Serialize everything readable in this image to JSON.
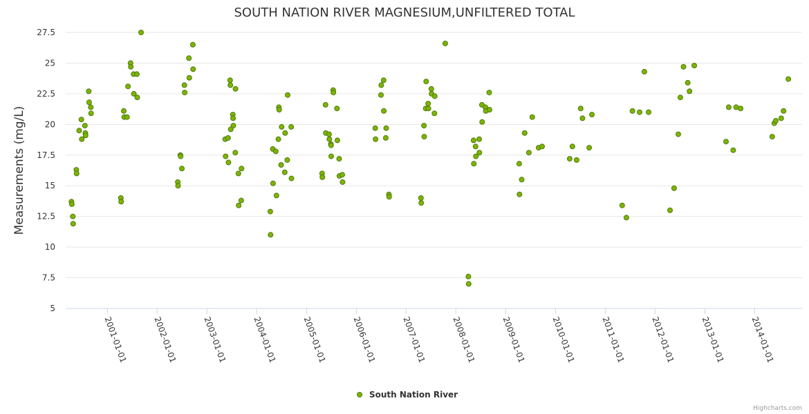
{
  "credits": "Highcharts.com",
  "chart_data": {
    "type": "scatter",
    "title": "SOUTH NATION RIVER MAGNESIUM,UNFILTERED TOTAL",
    "xlabel": "",
    "ylabel": "Measurements (mg/L)",
    "ylim": [
      5,
      27.5
    ],
    "yticks": [
      "5",
      "7.5",
      "10",
      "12.5",
      "15",
      "17.5",
      "20",
      "22.5",
      "25",
      "27.5"
    ],
    "xlim": [
      "2000-03-01",
      "2014-12-15"
    ],
    "xticks": [
      {
        "date": "2001-01-01",
        "label": "2001-01-01"
      },
      {
        "date": "2002-01-01",
        "label": "2002-01-01"
      },
      {
        "date": "2003-01-01",
        "label": "2003-01-01"
      },
      {
        "date": "2004-01-01",
        "label": "2004-01-01"
      },
      {
        "date": "2005-01-01",
        "label": "2005-01-01"
      },
      {
        "date": "2006-01-01",
        "label": "2006-01-01"
      },
      {
        "date": "2007-01-01",
        "label": "2007-01-01"
      },
      {
        "date": "2008-01-01",
        "label": "2008-01-01"
      },
      {
        "date": "2009-01-01",
        "label": "2009-01-01"
      },
      {
        "date": "2010-01-01",
        "label": "2010-01-01"
      },
      {
        "date": "2011-01-01",
        "label": "2011-01-01"
      },
      {
        "date": "2012-01-01",
        "label": "2012-01-01"
      },
      {
        "date": "2013-01-01",
        "label": "2013-01-01"
      },
      {
        "date": "2014-01-01",
        "label": "2014-01-01"
      }
    ],
    "grid": true,
    "legend_position": "bottom-center",
    "series": [
      {
        "name": "South Nation River",
        "color": "#6aa121",
        "marker_fill": "#7db500",
        "marker_stroke": "#4f7a10",
        "points": [
          [
            "2000-04-12",
            13.7
          ],
          [
            "2000-04-15",
            13.5
          ],
          [
            "2000-04-22",
            12.5
          ],
          [
            "2000-04-25",
            11.9
          ],
          [
            "2000-05-18",
            16.3
          ],
          [
            "2000-05-20",
            16.0
          ],
          [
            "2000-06-08",
            19.5
          ],
          [
            "2000-06-24",
            20.4
          ],
          [
            "2000-06-27",
            18.8
          ],
          [
            "2000-07-20",
            19.9
          ],
          [
            "2000-07-23",
            19.3
          ],
          [
            "2000-07-25",
            19.1
          ],
          [
            "2000-08-17",
            22.7
          ],
          [
            "2000-08-20",
            21.8
          ],
          [
            "2000-09-01",
            21.4
          ],
          [
            "2000-09-03",
            20.9
          ],
          [
            "2001-04-10",
            14.0
          ],
          [
            "2001-04-12",
            13.7
          ],
          [
            "2001-05-01",
            21.1
          ],
          [
            "2001-05-04",
            20.6
          ],
          [
            "2001-05-25",
            20.6
          ],
          [
            "2001-06-01",
            23.1
          ],
          [
            "2001-06-20",
            25.0
          ],
          [
            "2001-06-22",
            24.7
          ],
          [
            "2001-07-12",
            24.1
          ],
          [
            "2001-07-14",
            22.5
          ],
          [
            "2001-08-05",
            24.1
          ],
          [
            "2001-08-08",
            22.2
          ],
          [
            "2001-09-05",
            27.5
          ],
          [
            "2002-06-01",
            15.3
          ],
          [
            "2002-06-03",
            15.0
          ],
          [
            "2002-06-20",
            17.5
          ],
          [
            "2002-06-22",
            17.4
          ],
          [
            "2002-07-01",
            16.4
          ],
          [
            "2002-07-20",
            23.2
          ],
          [
            "2002-07-22",
            22.6
          ],
          [
            "2002-08-22",
            25.4
          ],
          [
            "2002-08-25",
            23.8
          ],
          [
            "2002-09-20",
            26.5
          ],
          [
            "2002-09-22",
            24.5
          ],
          [
            "2003-05-15",
            18.8
          ],
          [
            "2003-05-18",
            17.4
          ],
          [
            "2003-06-05",
            18.9
          ],
          [
            "2003-06-08",
            16.9
          ],
          [
            "2003-06-20",
            23.6
          ],
          [
            "2003-06-22",
            23.2
          ],
          [
            "2003-06-25",
            19.6
          ],
          [
            "2003-07-10",
            20.8
          ],
          [
            "2003-07-12",
            20.5
          ],
          [
            "2003-07-14",
            19.9
          ],
          [
            "2003-07-28",
            17.7
          ],
          [
            "2003-07-30",
            22.9
          ],
          [
            "2003-08-20",
            16.0
          ],
          [
            "2003-08-22",
            13.4
          ],
          [
            "2003-09-10",
            13.8
          ],
          [
            "2003-09-12",
            16.4
          ],
          [
            "2004-04-10",
            12.9
          ],
          [
            "2004-04-12",
            11.0
          ],
          [
            "2004-04-28",
            18.0
          ],
          [
            "2004-04-30",
            15.2
          ],
          [
            "2004-05-20",
            17.8
          ],
          [
            "2004-05-25",
            14.2
          ],
          [
            "2004-06-08",
            18.8
          ],
          [
            "2004-06-12",
            21.4
          ],
          [
            "2004-06-14",
            21.2
          ],
          [
            "2004-06-28",
            16.7
          ],
          [
            "2004-07-02",
            19.8
          ],
          [
            "2004-07-25",
            16.1
          ],
          [
            "2004-07-28",
            19.3
          ],
          [
            "2004-08-12",
            17.1
          ],
          [
            "2004-08-15",
            22.4
          ],
          [
            "2004-09-10",
            19.8
          ],
          [
            "2004-09-12",
            15.6
          ],
          [
            "2005-04-25",
            16.0
          ],
          [
            "2005-04-27",
            15.7
          ],
          [
            "2005-05-20",
            21.6
          ],
          [
            "2005-05-22",
            19.3
          ],
          [
            "2005-06-15",
            19.2
          ],
          [
            "2005-06-17",
            18.8
          ],
          [
            "2005-06-28",
            18.4
          ],
          [
            "2005-06-30",
            18.3
          ],
          [
            "2005-07-01",
            17.4
          ],
          [
            "2005-07-15",
            22.8
          ],
          [
            "2005-07-17",
            22.6
          ],
          [
            "2005-08-12",
            21.3
          ],
          [
            "2005-08-15",
            18.7
          ],
          [
            "2005-08-28",
            17.2
          ],
          [
            "2005-08-30",
            15.8
          ],
          [
            "2005-09-20",
            15.9
          ],
          [
            "2005-09-22",
            15.3
          ],
          [
            "2006-05-20",
            19.7
          ],
          [
            "2006-05-22",
            18.8
          ],
          [
            "2006-07-01",
            22.4
          ],
          [
            "2006-07-03",
            23.2
          ],
          [
            "2006-07-20",
            23.6
          ],
          [
            "2006-07-22",
            21.1
          ],
          [
            "2006-08-05",
            18.9
          ],
          [
            "2006-08-08",
            19.7
          ],
          [
            "2006-08-28",
            14.3
          ],
          [
            "2006-08-30",
            14.1
          ],
          [
            "2007-04-20",
            14.0
          ],
          [
            "2007-04-22",
            13.6
          ],
          [
            "2007-05-12",
            19.9
          ],
          [
            "2007-05-14",
            19.0
          ],
          [
            "2007-05-25",
            21.3
          ],
          [
            "2007-05-28",
            23.5
          ],
          [
            "2007-06-12",
            21.7
          ],
          [
            "2007-06-14",
            21.3
          ],
          [
            "2007-07-05",
            22.9
          ],
          [
            "2007-07-07",
            22.5
          ],
          [
            "2007-07-28",
            20.9
          ],
          [
            "2007-07-30",
            22.3
          ],
          [
            "2007-10-15",
            26.6
          ],
          [
            "2008-04-02",
            7.6
          ],
          [
            "2008-04-04",
            7.0
          ],
          [
            "2008-05-10",
            18.7
          ],
          [
            "2008-05-12",
            16.8
          ],
          [
            "2008-05-25",
            18.2
          ],
          [
            "2008-05-27",
            17.4
          ],
          [
            "2008-06-20",
            18.8
          ],
          [
            "2008-06-22",
            17.7
          ],
          [
            "2008-07-10",
            21.6
          ],
          [
            "2008-07-12",
            20.2
          ],
          [
            "2008-08-05",
            21.4
          ],
          [
            "2008-08-08",
            21.1
          ],
          [
            "2008-09-02",
            22.6
          ],
          [
            "2008-09-04",
            21.2
          ],
          [
            "2009-04-10",
            16.8
          ],
          [
            "2009-04-12",
            14.3
          ],
          [
            "2009-04-28",
            15.5
          ],
          [
            "2009-05-20",
            19.3
          ],
          [
            "2009-06-20",
            17.7
          ],
          [
            "2009-07-15",
            20.6
          ],
          [
            "2009-08-30",
            18.1
          ],
          [
            "2009-09-25",
            18.2
          ],
          [
            "2010-04-15",
            17.2
          ],
          [
            "2010-05-05",
            18.2
          ],
          [
            "2010-06-05",
            17.1
          ],
          [
            "2010-07-05",
            21.3
          ],
          [
            "2010-07-18",
            20.5
          ],
          [
            "2010-09-05",
            18.1
          ],
          [
            "2010-09-25",
            20.8
          ],
          [
            "2011-05-05",
            13.4
          ],
          [
            "2011-06-05",
            12.4
          ],
          [
            "2011-07-20",
            21.1
          ],
          [
            "2011-09-10",
            21.0
          ],
          [
            "2011-10-15",
            24.3
          ],
          [
            "2011-11-15",
            21.0
          ],
          [
            "2012-04-20",
            13.0
          ],
          [
            "2012-05-20",
            14.8
          ],
          [
            "2012-06-20",
            19.2
          ],
          [
            "2012-07-05",
            22.2
          ],
          [
            "2012-07-28",
            24.7
          ],
          [
            "2012-08-28",
            23.4
          ],
          [
            "2012-09-10",
            22.7
          ],
          [
            "2012-10-15",
            24.8
          ],
          [
            "2013-06-05",
            18.6
          ],
          [
            "2013-06-25",
            21.4
          ],
          [
            "2013-07-28",
            17.9
          ],
          [
            "2013-08-18",
            21.4
          ],
          [
            "2013-09-20",
            21.3
          ],
          [
            "2014-05-10",
            19.0
          ],
          [
            "2014-05-25",
            20.1
          ],
          [
            "2014-06-05",
            20.3
          ],
          [
            "2014-07-15",
            20.5
          ],
          [
            "2014-08-01",
            21.1
          ],
          [
            "2014-09-05",
            23.7
          ]
        ]
      }
    ]
  }
}
